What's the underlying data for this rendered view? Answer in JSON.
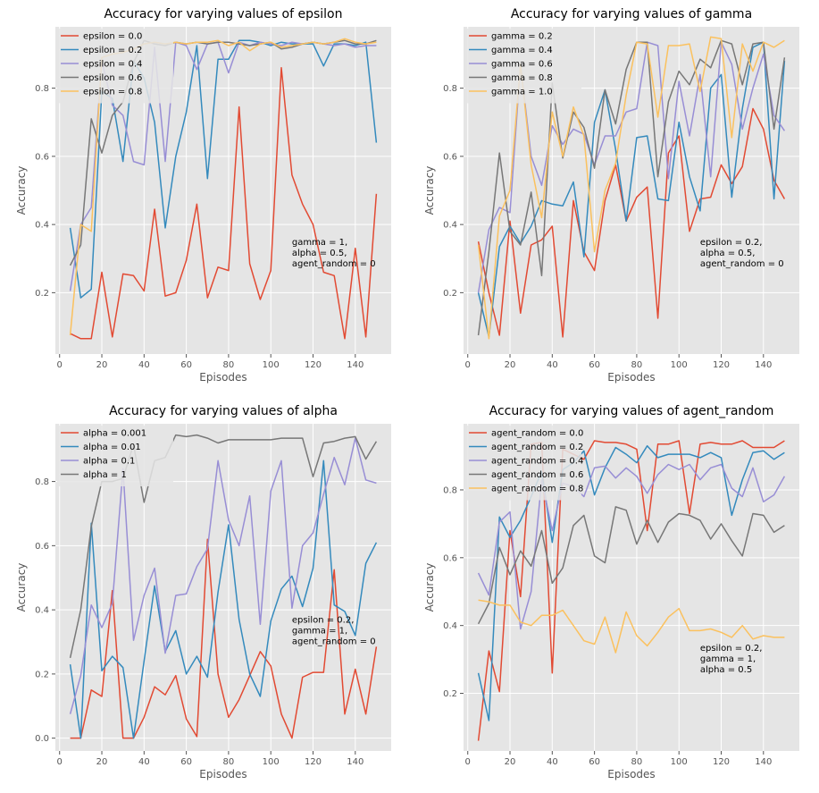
{
  "colors": {
    "series": [
      "#E24A33",
      "#348ABD",
      "#988ED5",
      "#777777",
      "#FBC15E"
    ]
  },
  "chart_data": [
    {
      "type": "line",
      "title": "Accuracy for varying values of epsilon",
      "xlabel": "Episodes",
      "ylabel": "Accuracy",
      "xlim": [
        -2,
        157
      ],
      "ylim": [
        0.02,
        0.98
      ],
      "xticks": [
        0,
        20,
        40,
        60,
        80,
        100,
        120,
        140
      ],
      "yticks": [
        0.2,
        0.4,
        0.6,
        0.8
      ],
      "ytick_decimals": 1,
      "grid": true,
      "legend": "top-left",
      "annotation": [
        "gamma  = 1,",
        "alpha =  0.5,",
        "agent_random = 0"
      ],
      "annotation_at": [
        110,
        0.34
      ],
      "x": [
        5,
        10,
        15,
        20,
        25,
        30,
        35,
        40,
        45,
        50,
        55,
        60,
        65,
        70,
        75,
        80,
        85,
        90,
        95,
        100,
        105,
        110,
        115,
        120,
        125,
        130,
        135,
        140,
        145,
        150
      ],
      "series": [
        {
          "name": "epsilon = 0.0",
          "values": [
            0.08,
            0.065,
            0.065,
            0.26,
            0.07,
            0.255,
            0.25,
            0.205,
            0.445,
            0.19,
            0.2,
            0.295,
            0.46,
            0.185,
            0.275,
            0.265,
            0.745,
            0.285,
            0.18,
            0.265,
            0.86,
            0.545,
            0.46,
            0.4,
            0.26,
            0.25,
            0.065,
            0.33,
            0.07,
            0.49
          ]
        },
        {
          "name": "epsilon = 0.2",
          "values": [
            0.39,
            0.185,
            0.21,
            0.79,
            0.77,
            0.585,
            0.88,
            0.83,
            0.7,
            0.39,
            0.6,
            0.73,
            0.925,
            0.535,
            0.885,
            0.885,
            0.94,
            0.94,
            0.935,
            0.925,
            0.935,
            0.93,
            0.93,
            0.93,
            0.865,
            0.93,
            0.93,
            0.925,
            0.935,
            0.64
          ]
        },
        {
          "name": "epsilon = 0.4",
          "values": [
            0.205,
            0.4,
            0.45,
            0.88,
            0.75,
            0.72,
            0.585,
            0.575,
            0.92,
            0.585,
            0.935,
            0.925,
            0.855,
            0.93,
            0.935,
            0.845,
            0.935,
            0.925,
            0.935,
            0.93,
            0.925,
            0.935,
            0.93,
            0.935,
            0.93,
            0.925,
            0.93,
            0.92,
            0.925,
            0.925
          ]
        },
        {
          "name": "epsilon = 0.6",
          "values": [
            0.28,
            0.34,
            0.71,
            0.61,
            0.72,
            0.76,
            0.875,
            0.94,
            0.93,
            0.925,
            0.935,
            0.93,
            0.935,
            0.93,
            0.935,
            0.935,
            0.93,
            0.925,
            0.93,
            0.935,
            0.915,
            0.92,
            0.93,
            0.935,
            0.93,
            0.935,
            0.94,
            0.93,
            0.93,
            0.94
          ]
        },
        {
          "name": "epsilon = 0.8",
          "values": [
            0.075,
            0.4,
            0.38,
            0.89,
            0.9,
            0.905,
            0.915,
            0.93,
            0.935,
            0.93,
            0.935,
            0.93,
            0.935,
            0.935,
            0.94,
            0.925,
            0.935,
            0.91,
            0.93,
            0.935,
            0.92,
            0.925,
            0.93,
            0.935,
            0.93,
            0.935,
            0.945,
            0.935,
            0.93,
            0.935
          ]
        }
      ]
    },
    {
      "type": "line",
      "title": "Accuracy for varying values of gamma",
      "xlabel": "Episodes",
      "ylabel": "Accuracy",
      "xlim": [
        -2,
        157
      ],
      "ylim": [
        0.02,
        0.98
      ],
      "xticks": [
        0,
        20,
        40,
        60,
        80,
        100,
        120,
        140
      ],
      "yticks": [
        0.2,
        0.4,
        0.6,
        0.8
      ],
      "ytick_decimals": 1,
      "grid": true,
      "legend": "top-left",
      "annotation": [
        "epsilon = 0.2,",
        "alpha = 0.5,",
        "agent_random = 0"
      ],
      "annotation_at": [
        110,
        0.34
      ],
      "x": [
        5,
        10,
        15,
        20,
        25,
        30,
        35,
        40,
        45,
        50,
        55,
        60,
        65,
        70,
        75,
        80,
        85,
        90,
        95,
        100,
        105,
        110,
        115,
        120,
        125,
        130,
        135,
        140,
        145,
        150
      ],
      "series": [
        {
          "name": "gamma = 0.2",
          "values": [
            0.35,
            0.2,
            0.075,
            0.41,
            0.14,
            0.34,
            0.355,
            0.395,
            0.07,
            0.47,
            0.32,
            0.265,
            0.47,
            0.575,
            0.41,
            0.48,
            0.51,
            0.125,
            0.61,
            0.66,
            0.38,
            0.475,
            0.48,
            0.575,
            0.52,
            0.57,
            0.74,
            0.68,
            0.53,
            0.475
          ]
        },
        {
          "name": "gamma = 0.4",
          "values": [
            0.2,
            0.07,
            0.335,
            0.395,
            0.345,
            0.395,
            0.47,
            0.46,
            0.455,
            0.525,
            0.305,
            0.7,
            0.795,
            0.62,
            0.41,
            0.655,
            0.66,
            0.475,
            0.47,
            0.7,
            0.54,
            0.44,
            0.8,
            0.84,
            0.48,
            0.74,
            0.92,
            0.935,
            0.475,
            0.88
          ]
        },
        {
          "name": "gamma = 0.6",
          "values": [
            0.2,
            0.385,
            0.45,
            0.435,
            0.87,
            0.6,
            0.515,
            0.69,
            0.635,
            0.68,
            0.665,
            0.575,
            0.66,
            0.66,
            0.73,
            0.74,
            0.935,
            0.925,
            0.535,
            0.82,
            0.66,
            0.84,
            0.54,
            0.935,
            0.87,
            0.68,
            0.8,
            0.9,
            0.72,
            0.675
          ]
        },
        {
          "name": "gamma = 0.8",
          "values": [
            0.075,
            0.32,
            0.61,
            0.38,
            0.34,
            0.495,
            0.25,
            0.815,
            0.595,
            0.73,
            0.685,
            0.565,
            0.795,
            0.695,
            0.855,
            0.935,
            0.935,
            0.54,
            0.76,
            0.85,
            0.81,
            0.885,
            0.86,
            0.94,
            0.93,
            0.81,
            0.93,
            0.935,
            0.68,
            0.89
          ]
        },
        {
          "name": "gamma = 1.0",
          "values": [
            0.34,
            0.065,
            0.425,
            0.5,
            0.87,
            0.575,
            0.42,
            0.73,
            0.6,
            0.745,
            0.66,
            0.32,
            0.5,
            0.58,
            0.78,
            0.935,
            0.93,
            0.715,
            0.925,
            0.925,
            0.93,
            0.79,
            0.95,
            0.945,
            0.655,
            0.93,
            0.85,
            0.935,
            0.92,
            0.94
          ]
        }
      ]
    },
    {
      "type": "line",
      "title": "Accuracy for varying values of alpha",
      "xlabel": "Episodes",
      "ylabel": "Accuracy",
      "xlim": [
        -2,
        157
      ],
      "ylim": [
        -0.04,
        0.98
      ],
      "xticks": [
        0,
        20,
        40,
        60,
        80,
        100,
        120,
        140
      ],
      "yticks": [
        0.0,
        0.2,
        0.4,
        0.6,
        0.8
      ],
      "ytick_decimals": 1,
      "grid": true,
      "legend": "top-left",
      "annotation": [
        "epsilon = 0.2,",
        "gamma = 1,",
        "agent_random = 0"
      ],
      "annotation_at": [
        110,
        0.36
      ],
      "x": [
        5,
        10,
        15,
        20,
        25,
        30,
        35,
        40,
        45,
        50,
        55,
        60,
        65,
        70,
        75,
        80,
        85,
        90,
        95,
        100,
        105,
        110,
        115,
        120,
        125,
        130,
        135,
        140,
        145,
        150
      ],
      "series": [
        {
          "name": "alpha = 0.001",
          "values": [
            0.0,
            0.0,
            0.15,
            0.13,
            0.46,
            0.0,
            0.0,
            0.065,
            0.16,
            0.135,
            0.195,
            0.06,
            0.005,
            0.62,
            0.2,
            0.065,
            0.12,
            0.195,
            0.27,
            0.225,
            0.075,
            0.0,
            0.19,
            0.205,
            0.205,
            0.525,
            0.075,
            0.215,
            0.075,
            0.285
          ]
        },
        {
          "name": "alpha = 0.01",
          "values": [
            0.23,
            0.0,
            0.67,
            0.21,
            0.255,
            0.22,
            0.0,
            0.24,
            0.475,
            0.27,
            0.335,
            0.2,
            0.255,
            0.19,
            0.455,
            0.665,
            0.37,
            0.2,
            0.13,
            0.365,
            0.465,
            0.505,
            0.41,
            0.53,
            0.865,
            0.415,
            0.395,
            0.32,
            0.545,
            0.61
          ]
        },
        {
          "name": "alpha = 0.1",
          "values": [
            0.075,
            0.195,
            0.415,
            0.345,
            0.42,
            0.84,
            0.305,
            0.445,
            0.53,
            0.265,
            0.445,
            0.45,
            0.535,
            0.59,
            0.865,
            0.68,
            0.6,
            0.755,
            0.355,
            0.77,
            0.865,
            0.405,
            0.6,
            0.64,
            0.76,
            0.875,
            0.79,
            0.935,
            0.805,
            0.795
          ]
        },
        {
          "name": "alpha = 1",
          "values": [
            0.25,
            0.4,
            0.66,
            0.8,
            0.8,
            0.81,
            0.915,
            0.735,
            0.865,
            0.875,
            0.945,
            0.94,
            0.945,
            0.935,
            0.92,
            0.93,
            0.93,
            0.93,
            0.93,
            0.93,
            0.935,
            0.935,
            0.935,
            0.815,
            0.92,
            0.925,
            0.935,
            0.94,
            0.87,
            0.925
          ]
        }
      ]
    },
    {
      "type": "line",
      "title": "Accuracy for varying values of agent_random",
      "xlabel": "Episodes",
      "ylabel": "Accuracy",
      "xlim": [
        -2,
        157
      ],
      "ylim": [
        0.03,
        0.995
      ],
      "xticks": [
        0,
        20,
        40,
        60,
        80,
        100,
        120,
        140
      ],
      "yticks": [
        0.2,
        0.4,
        0.6,
        0.8
      ],
      "ytick_decimals": 1,
      "grid": true,
      "legend": "top-left",
      "annotation": [
        "epsilon = 0.2,",
        "gamma = 1,",
        "alpha = 0.5"
      ],
      "annotation_at": [
        110,
        0.325
      ],
      "x": [
        5,
        10,
        15,
        20,
        25,
        30,
        35,
        40,
        45,
        50,
        55,
        60,
        65,
        70,
        75,
        80,
        85,
        90,
        95,
        100,
        105,
        110,
        115,
        120,
        125,
        130,
        135,
        140,
        145,
        150
      ],
      "series": [
        {
          "name": "agent_random = 0.0",
          "values": [
            0.06,
            0.325,
            0.205,
            0.68,
            0.485,
            0.935,
            0.94,
            0.26,
            0.92,
            0.905,
            0.89,
            0.945,
            0.94,
            0.94,
            0.935,
            0.92,
            0.68,
            0.935,
            0.935,
            0.945,
            0.73,
            0.935,
            0.94,
            0.935,
            0.935,
            0.945,
            0.925,
            0.925,
            0.925,
            0.945
          ]
        },
        {
          "name": "agent_random = 0.2",
          "values": [
            0.26,
            0.12,
            0.72,
            0.66,
            0.71,
            0.78,
            0.855,
            0.645,
            0.86,
            0.88,
            0.915,
            0.785,
            0.865,
            0.925,
            0.905,
            0.88,
            0.93,
            0.895,
            0.905,
            0.905,
            0.905,
            0.895,
            0.91,
            0.895,
            0.725,
            0.83,
            0.91,
            0.915,
            0.89,
            0.91
          ]
        },
        {
          "name": "agent_random = 0.4",
          "values": [
            0.555,
            0.49,
            0.705,
            0.735,
            0.39,
            0.5,
            0.83,
            0.68,
            0.82,
            0.81,
            0.78,
            0.865,
            0.87,
            0.835,
            0.865,
            0.84,
            0.79,
            0.845,
            0.875,
            0.86,
            0.875,
            0.83,
            0.865,
            0.875,
            0.805,
            0.78,
            0.865,
            0.765,
            0.785,
            0.84
          ]
        },
        {
          "name": "agent_random = 0.6",
          "values": [
            0.405,
            0.465,
            0.63,
            0.55,
            0.62,
            0.575,
            0.68,
            0.525,
            0.57,
            0.695,
            0.725,
            0.605,
            0.585,
            0.75,
            0.74,
            0.64,
            0.71,
            0.645,
            0.705,
            0.73,
            0.725,
            0.71,
            0.655,
            0.7,
            0.65,
            0.605,
            0.73,
            0.725,
            0.675,
            0.695
          ]
        },
        {
          "name": "agent_random = 0.8",
          "values": [
            0.475,
            0.47,
            0.46,
            0.46,
            0.41,
            0.4,
            0.43,
            0.43,
            0.445,
            0.4,
            0.355,
            0.345,
            0.425,
            0.32,
            0.44,
            0.37,
            0.34,
            0.38,
            0.425,
            0.45,
            0.385,
            0.385,
            0.39,
            0.38,
            0.365,
            0.4,
            0.36,
            0.37,
            0.365,
            0.365
          ]
        }
      ]
    }
  ]
}
